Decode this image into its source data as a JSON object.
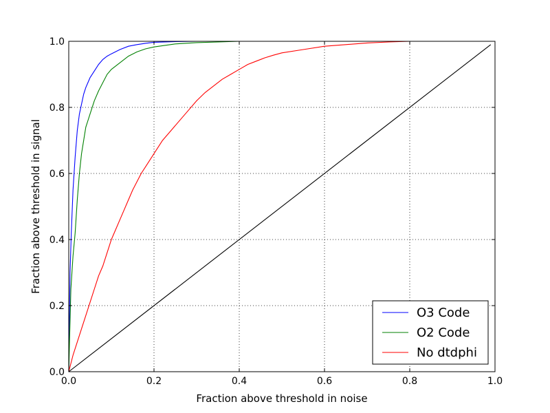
{
  "chart_data": {
    "type": "line",
    "title": "",
    "xlabel": "Fraction above threshold in noise",
    "ylabel": "Fraction above threshold in signal",
    "xlim": [
      0.0,
      1.0
    ],
    "ylim": [
      0.0,
      1.0
    ],
    "xticks": [
      "0.0",
      "0.2",
      "0.4",
      "0.6",
      "0.8",
      "1.0"
    ],
    "yticks": [
      "0.0",
      "0.2",
      "0.4",
      "0.6",
      "0.8",
      "1.0"
    ],
    "grid": true,
    "legend_position": "lower-right",
    "series": [
      {
        "name": "O3 Code",
        "color": "#0000ff",
        "x": [
          0,
          0.003,
          0.006,
          0.01,
          0.015,
          0.02,
          0.025,
          0.03,
          0.035,
          0.04,
          0.045,
          0.05,
          0.06,
          0.07,
          0.08,
          0.09,
          0.1,
          0.12,
          0.14,
          0.16,
          0.18,
          0.2,
          0.25,
          0.3,
          0.4
        ],
        "y": [
          0,
          0.3,
          0.42,
          0.55,
          0.65,
          0.73,
          0.78,
          0.81,
          0.84,
          0.86,
          0.875,
          0.89,
          0.91,
          0.93,
          0.945,
          0.955,
          0.962,
          0.975,
          0.985,
          0.99,
          0.994,
          0.997,
          0.999,
          1.0,
          1.0
        ]
      },
      {
        "name": "O2 Code",
        "color": "#008000",
        "x": [
          0,
          0.005,
          0.01,
          0.015,
          0.02,
          0.025,
          0.03,
          0.035,
          0.04,
          0.05,
          0.06,
          0.07,
          0.08,
          0.09,
          0.1,
          0.12,
          0.14,
          0.16,
          0.18,
          0.2,
          0.25,
          0.3,
          0.35,
          0.4
        ],
        "y": [
          0,
          0.25,
          0.35,
          0.42,
          0.52,
          0.6,
          0.66,
          0.7,
          0.74,
          0.78,
          0.82,
          0.85,
          0.875,
          0.9,
          0.915,
          0.935,
          0.955,
          0.968,
          0.977,
          0.983,
          0.992,
          0.996,
          0.998,
          1.0
        ]
      },
      {
        "name": "No dtdphi",
        "color": "#ff0000",
        "x": [
          0,
          0.01,
          0.02,
          0.03,
          0.04,
          0.05,
          0.06,
          0.07,
          0.08,
          0.09,
          0.1,
          0.11,
          0.12,
          0.13,
          0.14,
          0.15,
          0.16,
          0.17,
          0.18,
          0.19,
          0.2,
          0.22,
          0.24,
          0.26,
          0.28,
          0.3,
          0.32,
          0.34,
          0.36,
          0.38,
          0.4,
          0.42,
          0.44,
          0.46,
          0.48,
          0.5,
          0.55,
          0.6,
          0.65,
          0.7,
          0.75,
          0.8
        ],
        "y": [
          0,
          0.05,
          0.09,
          0.13,
          0.17,
          0.21,
          0.25,
          0.29,
          0.32,
          0.36,
          0.4,
          0.43,
          0.46,
          0.49,
          0.52,
          0.55,
          0.575,
          0.6,
          0.62,
          0.64,
          0.66,
          0.7,
          0.73,
          0.76,
          0.79,
          0.82,
          0.845,
          0.865,
          0.885,
          0.9,
          0.915,
          0.93,
          0.94,
          0.95,
          0.958,
          0.965,
          0.975,
          0.985,
          0.99,
          0.995,
          0.998,
          1.0
        ]
      },
      {
        "name": "",
        "color": "#000000",
        "x": [
          0,
          0.99
        ],
        "y": [
          0,
          0.99
        ]
      }
    ]
  }
}
